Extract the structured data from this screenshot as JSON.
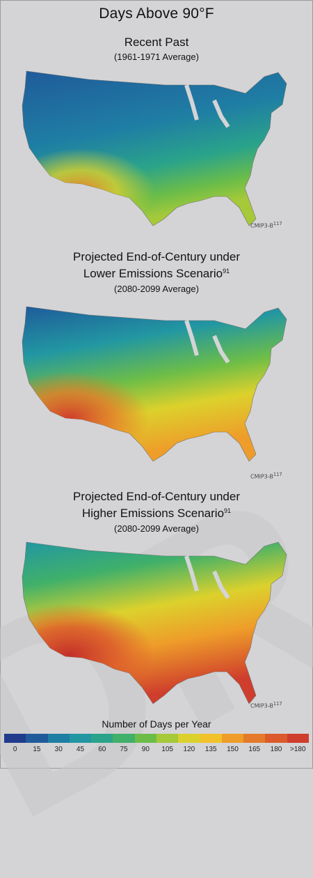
{
  "title": "Days Above 90°F",
  "panels": [
    {
      "title": "Recent Past",
      "title2": "",
      "fn": "",
      "sub": "(1961-1971 Average)",
      "credit": "CMIP3-B",
      "credit_ref": "117",
      "intensity": 0.0
    },
    {
      "title": "Projected End-of-Century under",
      "title2": "Lower Emissions Scenario",
      "fn": "91",
      "sub": "(2080-2099 Average)",
      "credit": "CMIP3-B",
      "credit_ref": "117",
      "intensity": 0.45
    },
    {
      "title": "Projected End-of-Century under",
      "title2": "Higher Emissions Scenario",
      "fn": "91",
      "sub": "(2080-2099 Average)",
      "credit": "CMIP3-B",
      "credit_ref": "117",
      "intensity": 0.8
    }
  ],
  "legend": {
    "title": "Number of Days per Year",
    "ticks": [
      "0",
      "15",
      "30",
      "45",
      "60",
      "75",
      "90",
      "105",
      "120",
      "135",
      "150",
      "165",
      "180",
      ">180"
    ],
    "colors": [
      "#203a8c",
      "#1f5b9a",
      "#1f7ea4",
      "#2297a2",
      "#2aa38a",
      "#40b06a",
      "#6cbd48",
      "#a6c93a",
      "#dcd12c",
      "#f2c22a",
      "#ee9d2a",
      "#e57a2a",
      "#dc5a2c",
      "#cf3e2c"
    ]
  },
  "watermark": "DR"
}
